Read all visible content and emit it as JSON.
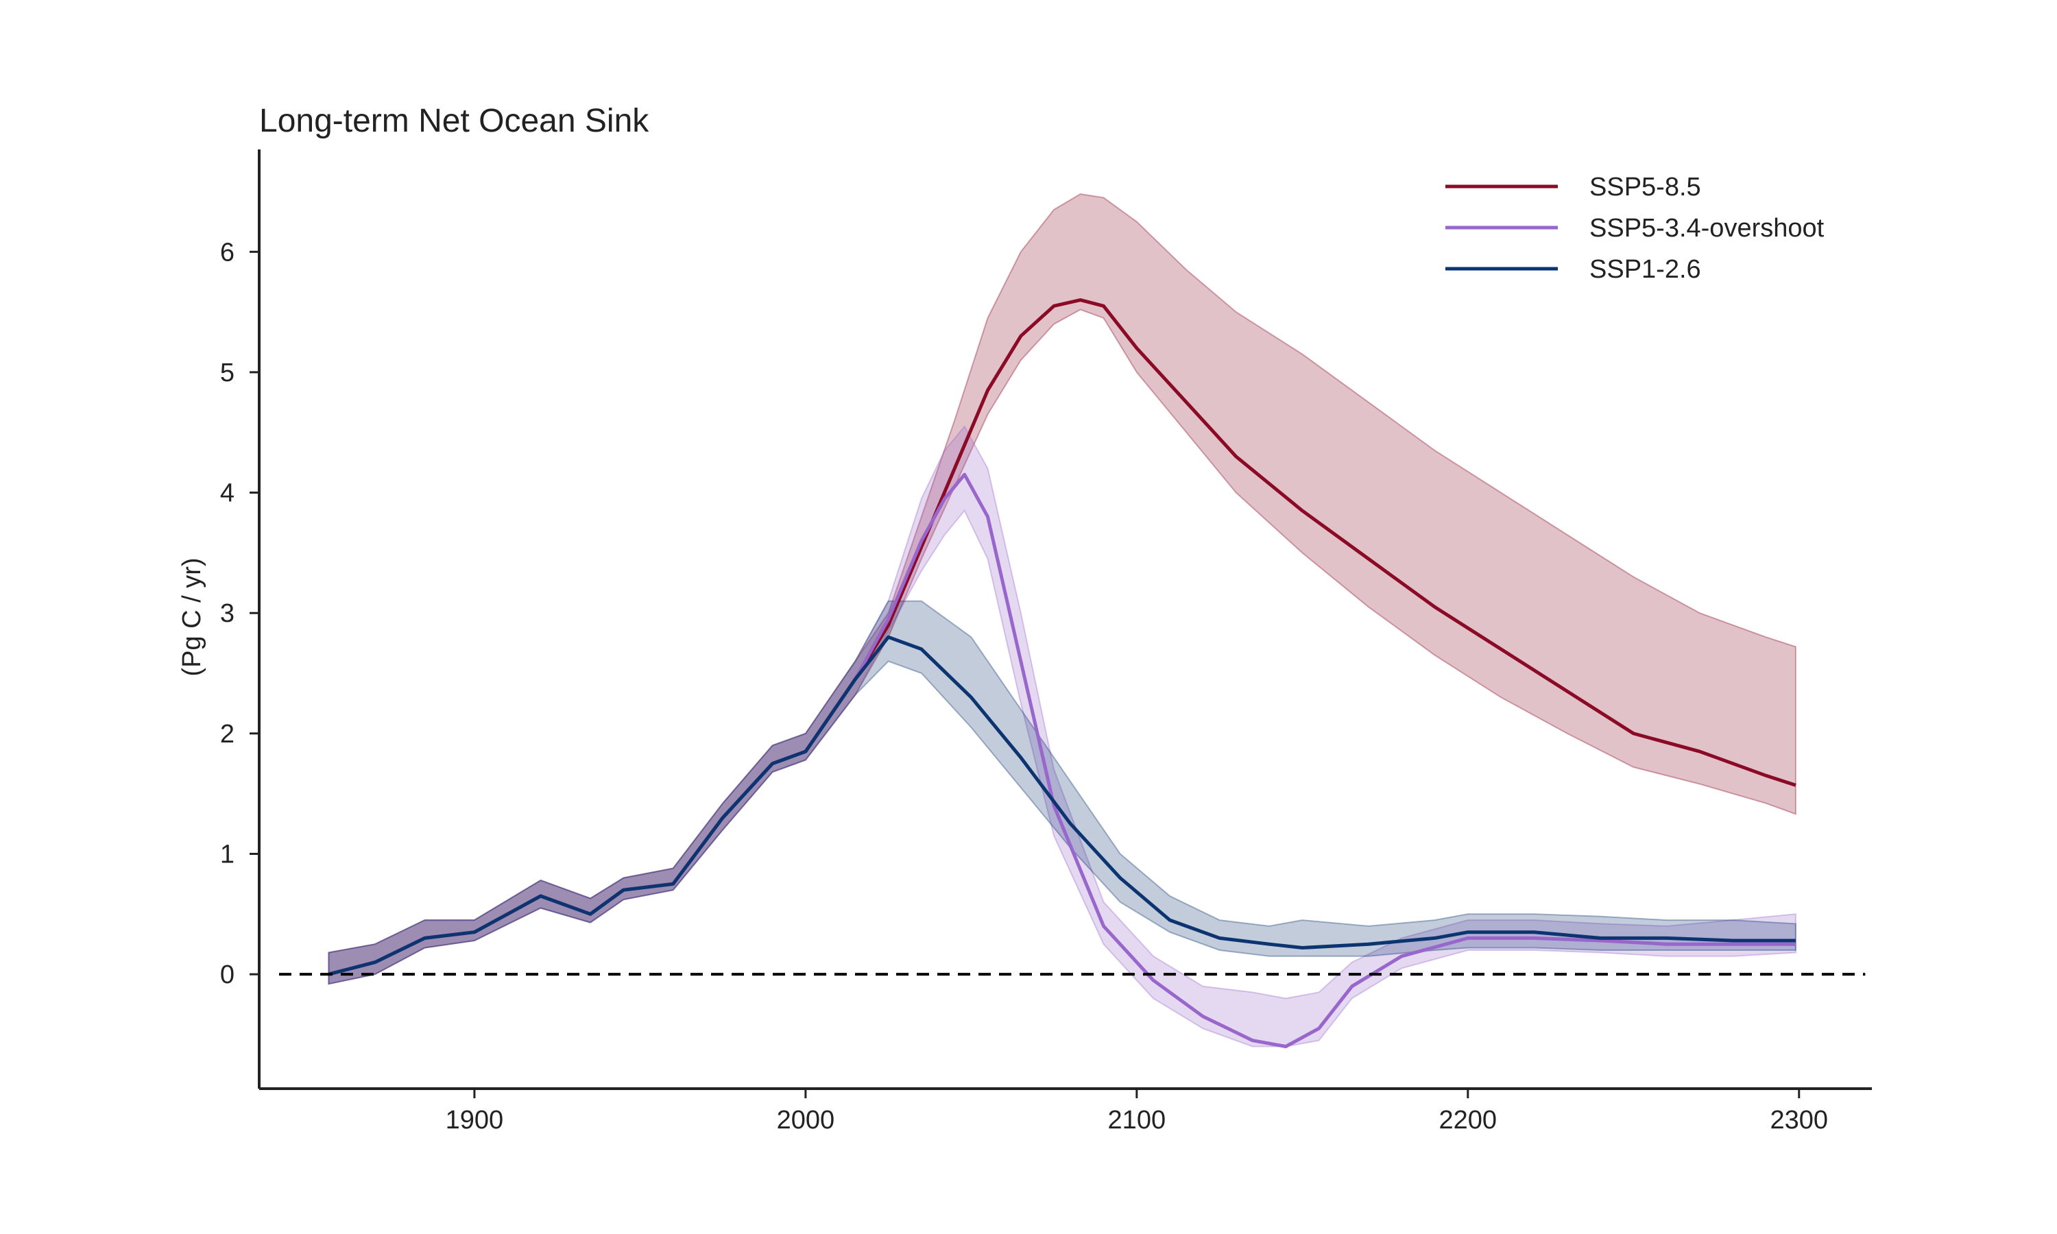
{
  "chart_data": {
    "type": "line",
    "title": "Long-term Net Ocean Sink",
    "xlabel": "",
    "ylabel": "(Pg C / yr)",
    "xlim": [
      1835,
      2322
    ],
    "ylim": [
      -0.95,
      6.85
    ],
    "xticks": [
      1900,
      2000,
      2100,
      2200,
      2300
    ],
    "yticks": [
      0,
      1,
      2,
      3,
      4,
      5,
      6
    ],
    "grid": false,
    "legend_position": "top-right",
    "reference_line": {
      "y": 0,
      "style": "dashed",
      "color": "#000000"
    },
    "series": [
      {
        "name": "SSP5-8.5",
        "color": "#8b0a26",
        "x": [
          1856,
          1870,
          1885,
          1900,
          1920,
          1935,
          1945,
          1960,
          1975,
          1990,
          2000,
          2015,
          2025,
          2035,
          2045,
          2055,
          2065,
          2075,
          2083,
          2090,
          2100,
          2115,
          2130,
          2150,
          2170,
          2190,
          2210,
          2230,
          2250,
          2270,
          2290,
          2299
        ],
        "y": [
          0.0,
          0.1,
          0.3,
          0.35,
          0.65,
          0.5,
          0.7,
          0.75,
          1.3,
          1.75,
          1.85,
          2.45,
          2.9,
          3.55,
          4.2,
          4.85,
          5.3,
          5.55,
          5.6,
          5.55,
          5.2,
          4.75,
          4.3,
          3.85,
          3.45,
          3.05,
          2.7,
          2.35,
          2.0,
          1.85,
          1.65,
          1.57
        ],
        "upper": [
          0.18,
          0.25,
          0.45,
          0.45,
          0.78,
          0.63,
          0.8,
          0.88,
          1.42,
          1.9,
          2.0,
          2.6,
          3.0,
          3.8,
          4.6,
          5.45,
          6.0,
          6.35,
          6.48,
          6.45,
          6.25,
          5.85,
          5.5,
          5.15,
          4.75,
          4.35,
          4.0,
          3.65,
          3.3,
          3.0,
          2.8,
          2.72
        ],
        "lower": [
          -0.08,
          0.0,
          0.22,
          0.28,
          0.55,
          0.43,
          0.62,
          0.7,
          1.2,
          1.68,
          1.78,
          2.32,
          2.8,
          3.45,
          4.05,
          4.65,
          5.1,
          5.4,
          5.52,
          5.45,
          5.0,
          4.5,
          4.0,
          3.5,
          3.05,
          2.65,
          2.3,
          2.0,
          1.72,
          1.58,
          1.42,
          1.33
        ]
      },
      {
        "name": "SSP5-3.4-overshoot",
        "color": "#9966cc",
        "x": [
          1856,
          1870,
          1885,
          1900,
          1920,
          1935,
          1945,
          1960,
          1975,
          1990,
          2000,
          2015,
          2025,
          2035,
          2042,
          2048,
          2055,
          2065,
          2075,
          2090,
          2105,
          2120,
          2135,
          2145,
          2155,
          2165,
          2180,
          2200,
          2220,
          2240,
          2260,
          2280,
          2299
        ],
        "y": [
          0.0,
          0.1,
          0.3,
          0.35,
          0.65,
          0.5,
          0.7,
          0.75,
          1.3,
          1.75,
          1.85,
          2.45,
          2.95,
          3.6,
          3.95,
          4.15,
          3.8,
          2.6,
          1.4,
          0.4,
          -0.05,
          -0.35,
          -0.55,
          -0.6,
          -0.45,
          -0.1,
          0.15,
          0.3,
          0.3,
          0.28,
          0.25,
          0.25,
          0.25
        ],
        "upper": [
          0.18,
          0.25,
          0.45,
          0.45,
          0.78,
          0.63,
          0.8,
          0.88,
          1.42,
          1.9,
          2.0,
          2.6,
          3.1,
          3.95,
          4.35,
          4.55,
          4.2,
          3.0,
          1.7,
          0.6,
          0.15,
          -0.1,
          -0.15,
          -0.2,
          -0.15,
          0.1,
          0.3,
          0.45,
          0.45,
          0.42,
          0.4,
          0.45,
          0.5
        ],
        "lower": [
          -0.08,
          0.0,
          0.22,
          0.28,
          0.55,
          0.43,
          0.62,
          0.7,
          1.2,
          1.68,
          1.78,
          2.32,
          2.85,
          3.35,
          3.65,
          3.85,
          3.45,
          2.25,
          1.15,
          0.25,
          -0.2,
          -0.45,
          -0.6,
          -0.6,
          -0.55,
          -0.2,
          0.05,
          0.2,
          0.2,
          0.18,
          0.15,
          0.15,
          0.18
        ]
      },
      {
        "name": "SSP1-2.6",
        "color": "#0b3470",
        "x": [
          1856,
          1870,
          1885,
          1900,
          1920,
          1935,
          1945,
          1960,
          1975,
          1990,
          2000,
          2015,
          2025,
          2035,
          2050,
          2065,
          2080,
          2095,
          2110,
          2125,
          2140,
          2150,
          2170,
          2190,
          2200,
          2220,
          2240,
          2260,
          2280,
          2299
        ],
        "y": [
          0.0,
          0.1,
          0.3,
          0.35,
          0.65,
          0.5,
          0.7,
          0.75,
          1.3,
          1.75,
          1.85,
          2.45,
          2.8,
          2.7,
          2.3,
          1.8,
          1.25,
          0.8,
          0.45,
          0.3,
          0.25,
          0.22,
          0.25,
          0.3,
          0.35,
          0.35,
          0.3,
          0.3,
          0.28,
          0.28
        ],
        "upper": [
          0.18,
          0.25,
          0.45,
          0.45,
          0.78,
          0.63,
          0.8,
          0.88,
          1.42,
          1.9,
          2.0,
          2.6,
          3.1,
          3.1,
          2.8,
          2.2,
          1.6,
          1.0,
          0.65,
          0.45,
          0.4,
          0.45,
          0.4,
          0.45,
          0.5,
          0.5,
          0.48,
          0.45,
          0.45,
          0.42
        ],
        "lower": [
          -0.08,
          0.0,
          0.22,
          0.28,
          0.55,
          0.43,
          0.62,
          0.7,
          1.2,
          1.68,
          1.78,
          2.32,
          2.6,
          2.5,
          2.05,
          1.55,
          1.05,
          0.6,
          0.35,
          0.2,
          0.15,
          0.15,
          0.15,
          0.2,
          0.22,
          0.22,
          0.2,
          0.2,
          0.2,
          0.2
        ]
      }
    ]
  }
}
